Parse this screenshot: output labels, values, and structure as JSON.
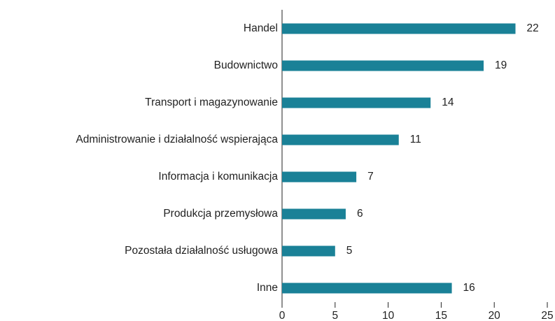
{
  "chart_data": {
    "type": "barh",
    "categories": [
      "Handel",
      "Budownictwo",
      "Transport i magazynowanie",
      "Administrowanie i działalność wspierająca",
      "Informacja i komunikacja",
      "Produkcja przemysłowa",
      "Pozostała działalność usługowa",
      "Inne"
    ],
    "values": [
      22,
      19,
      14,
      11,
      7,
      6,
      5,
      16
    ],
    "color": "#1a8197",
    "xlim": [
      0,
      25
    ],
    "xticks": [
      0,
      5,
      10,
      15,
      20,
      25
    ],
    "grid": false
  }
}
